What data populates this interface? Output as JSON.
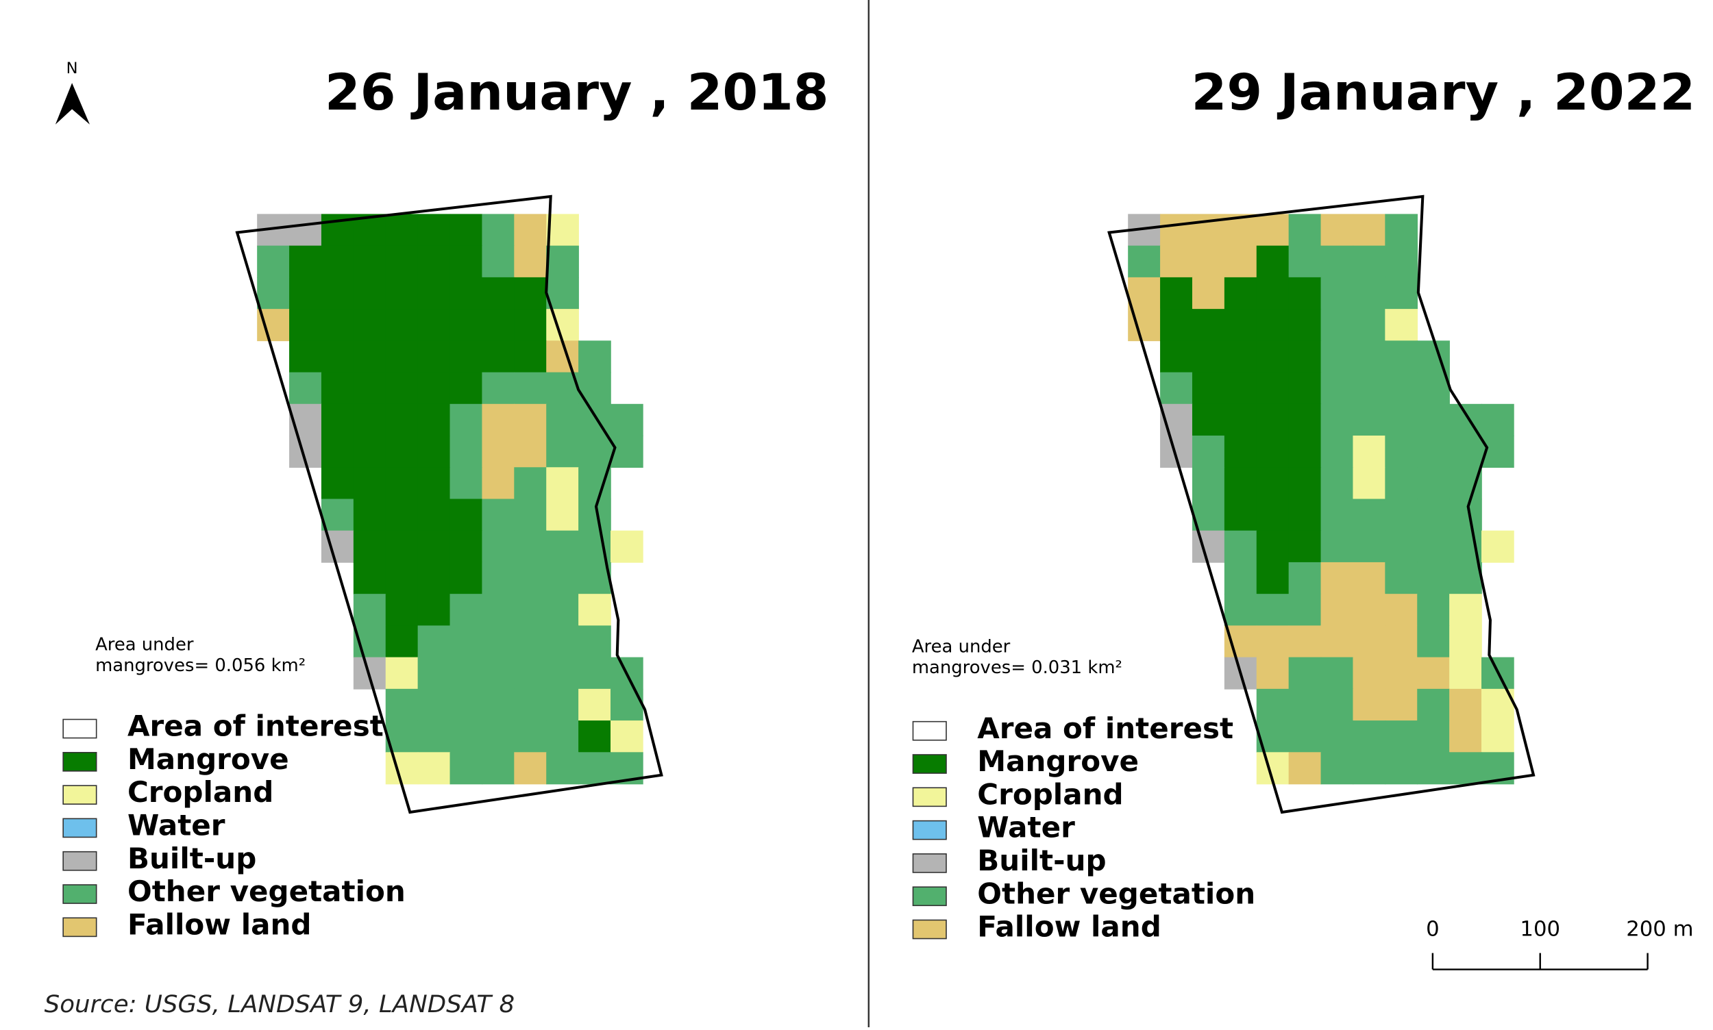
{
  "north": "N",
  "legend": [
    {
      "label": "Area of interest",
      "color": "#ffffff"
    },
    {
      "label": "Mangrove",
      "color": "#077c00"
    },
    {
      "label": "Cropland",
      "color": "#f2f59a"
    },
    {
      "label": "Water",
      "color": "#6ec0ec"
    },
    {
      "label": "Built-up",
      "color": "#b4b4b4"
    },
    {
      "label": "Other vegetation",
      "color": "#52b06e"
    },
    {
      "label": "Fallow land",
      "color": "#e2c670"
    }
  ],
  "maps": [
    {
      "title": "26 January , 2018",
      "note_line1": "Area under",
      "note_line2": "mangroves= 0.056 km²"
    },
    {
      "title": "29 January , 2022",
      "note_line1": "Area under",
      "note_line2": "mangroves= 0.031 km²"
    }
  ],
  "scale_bar": [
    "0",
    "100",
    "200 m"
  ],
  "source": "Source: USGS, LANDSAT 9, LANDSAT 8"
}
